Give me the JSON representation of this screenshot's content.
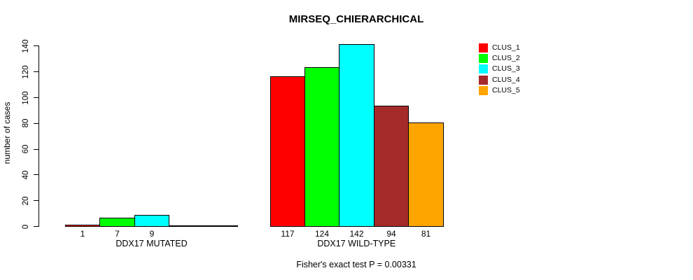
{
  "title": "MIRSEQ_CHIERARCHICAL",
  "chart_data": {
    "type": "bar",
    "title": "MIRSEQ_CHIERARCHICAL",
    "xlabel": "",
    "ylabel": "number of cases",
    "ylim": [
      0,
      140
    ],
    "yticks": [
      0,
      20,
      40,
      60,
      80,
      100,
      120,
      140
    ],
    "grid": false,
    "legend_position": "right",
    "legend": [
      {
        "label": "CLUS_1",
        "color": "#ff0000"
      },
      {
        "label": "CLUS_2",
        "color": "#00ff00"
      },
      {
        "label": "CLUS_3",
        "color": "#00ffff"
      },
      {
        "label": "CLUS_4",
        "color": "#a52a2a"
      },
      {
        "label": "CLUS_5",
        "color": "#ffa500"
      }
    ],
    "groups": [
      {
        "label": "DDX17 MUTATED",
        "bars": [
          {
            "cluster": "CLUS_1",
            "value": 1,
            "color": "#ff0000"
          },
          {
            "cluster": "CLUS_2",
            "value": 7,
            "color": "#00ff00"
          },
          {
            "cluster": "CLUS_3",
            "value": 9,
            "color": "#00ffff"
          }
        ]
      },
      {
        "label": "DDX17 WILD-TYPE",
        "bars": [
          {
            "cluster": "CLUS_1",
            "value": 117,
            "color": "#ff0000"
          },
          {
            "cluster": "CLUS_2",
            "value": 124,
            "color": "#00ff00"
          },
          {
            "cluster": "CLUS_3",
            "value": 142,
            "color": "#00ffff"
          },
          {
            "cluster": "CLUS_4",
            "value": 94,
            "color": "#a52a2a"
          },
          {
            "cluster": "CLUS_5",
            "value": 81,
            "color": "#ffa500"
          }
        ]
      }
    ],
    "annotation": "Fisher's exact test P = 0.00331"
  }
}
